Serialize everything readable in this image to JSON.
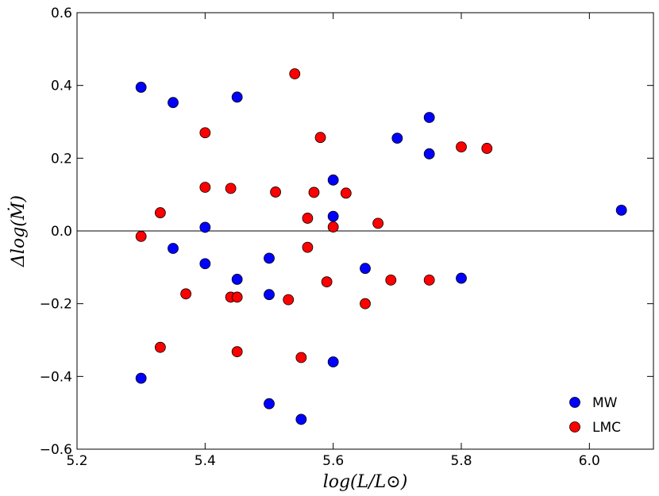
{
  "chart_data": {
    "type": "scatter",
    "xlabel": "log(L/L⊙)",
    "ylabel": "Δlog(Ṁ)",
    "xlim": [
      5.2,
      6.1
    ],
    "ylim": [
      -0.6,
      0.6
    ],
    "xticks": [
      "5.2",
      "5.4",
      "5.6",
      "5.8",
      "6.0"
    ],
    "yticks": [
      "−0.6",
      "−0.4",
      "−0.2",
      "0.0",
      "0.2",
      "0.4",
      "0.6"
    ],
    "hline": 0.0,
    "legend_position": "bottom-right",
    "series": [
      {
        "name": "MW",
        "color": "#0000ff",
        "points": [
          [
            5.3,
            0.395
          ],
          [
            5.35,
            0.353
          ],
          [
            5.45,
            0.368
          ],
          [
            5.6,
            0.14
          ],
          [
            5.6,
            0.04
          ],
          [
            5.7,
            0.255
          ],
          [
            5.75,
            0.312
          ],
          [
            5.75,
            0.212
          ],
          [
            6.05,
            0.057
          ],
          [
            5.4,
            0.01
          ],
          [
            5.35,
            -0.048
          ],
          [
            5.4,
            -0.09
          ],
          [
            5.45,
            -0.133
          ],
          [
            5.5,
            -0.075
          ],
          [
            5.5,
            -0.175
          ],
          [
            5.65,
            -0.103
          ],
          [
            5.8,
            -0.13
          ],
          [
            5.3,
            -0.405
          ],
          [
            5.5,
            -0.475
          ],
          [
            5.55,
            -0.518
          ],
          [
            5.6,
            -0.36
          ]
        ]
      },
      {
        "name": "LMC",
        "color": "#ff0000",
        "points": [
          [
            5.54,
            0.432
          ],
          [
            5.4,
            0.27
          ],
          [
            5.58,
            0.257
          ],
          [
            5.8,
            0.231
          ],
          [
            5.84,
            0.227
          ],
          [
            5.4,
            0.12
          ],
          [
            5.44,
            0.117
          ],
          [
            5.51,
            0.107
          ],
          [
            5.57,
            0.106
          ],
          [
            5.62,
            0.104
          ],
          [
            5.33,
            0.05
          ],
          [
            5.56,
            0.035
          ],
          [
            5.67,
            0.021
          ],
          [
            5.6,
            0.011
          ],
          [
            5.3,
            -0.015
          ],
          [
            5.56,
            -0.045
          ],
          [
            5.37,
            -0.173
          ],
          [
            5.44,
            -0.182
          ],
          [
            5.45,
            -0.182
          ],
          [
            5.53,
            -0.189
          ],
          [
            5.59,
            -0.14
          ],
          [
            5.65,
            -0.2
          ],
          [
            5.69,
            -0.135
          ],
          [
            5.75,
            -0.135
          ],
          [
            5.33,
            -0.32
          ],
          [
            5.45,
            -0.332
          ],
          [
            5.55,
            -0.348
          ]
        ]
      }
    ]
  }
}
